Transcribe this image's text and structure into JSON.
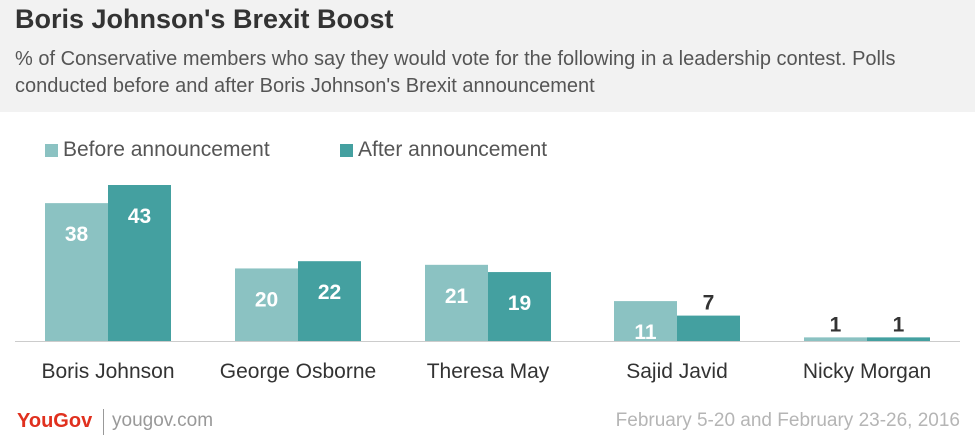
{
  "header": {
    "title": "Boris Johnson's Brexit Boost",
    "subtitle": "% of Conservative members who say they would vote for the following in a leadership contest. Polls conducted before and after Boris Johnson's Brexit announcement"
  },
  "footer": {
    "logo": "YouGov",
    "url": "yougov.com",
    "date": "February 5-20 and February 23-26, 2016"
  },
  "colors": {
    "before": "#8bc2c2",
    "after": "#44a0a0",
    "header_bg": "#f2f2f2",
    "logo": "#e0301e"
  },
  "chart_data": {
    "type": "bar",
    "categories": [
      "Boris Johnson",
      "George Osborne",
      "Theresa May",
      "Sajid Javid",
      "Nicky Morgan"
    ],
    "series": [
      {
        "name": "Before announcement",
        "values": [
          38,
          20,
          21,
          11,
          1
        ]
      },
      {
        "name": "After announcement",
        "values": [
          43,
          22,
          19,
          7,
          1
        ]
      }
    ],
    "ylim": [
      0,
      43
    ],
    "legend": "top-left",
    "grid": false
  }
}
